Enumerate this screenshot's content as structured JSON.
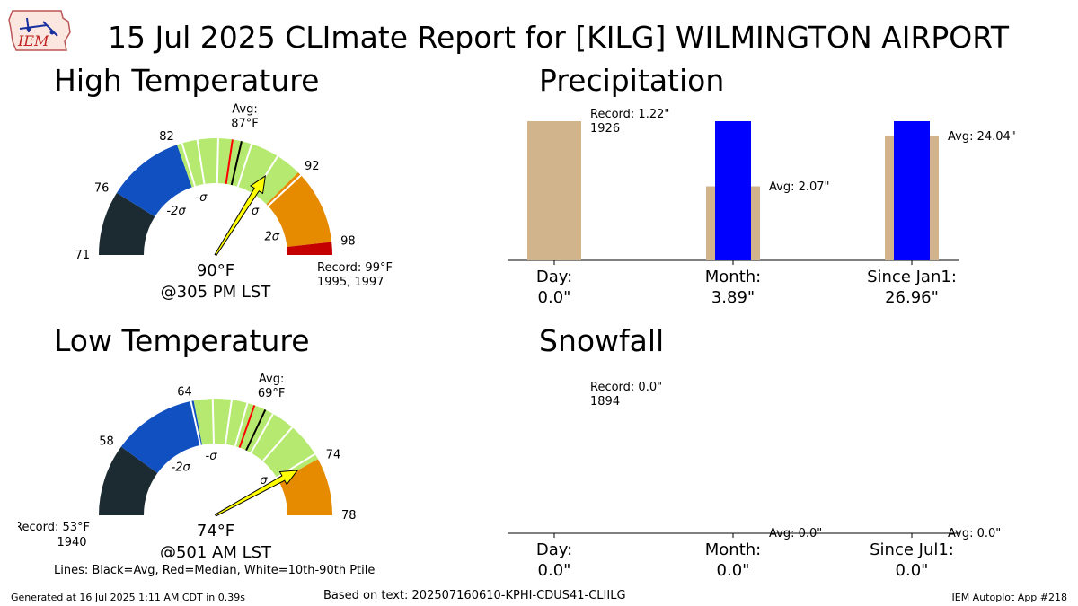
{
  "title": "15 Jul 2025 CLImate Report for [KILG] WILMINGTON AIRPORT",
  "logo_text": "IEM",
  "sections": {
    "high": "High Temperature",
    "low": "Low Temperature",
    "precip": "Precipitation",
    "snow": "Snowfall"
  },
  "chart_data": [
    {
      "type": "gauge",
      "id": "high",
      "min": 71,
      "max": 99,
      "value": 90,
      "value_label": "90$^\\circ$F",
      "time_label": "@305 PM LST",
      "avg": 87,
      "avg_label": [
        "Avg:",
        "87$^\\circ$F"
      ],
      "median": 86.3,
      "tick_labels": [
        {
          "v": 71,
          "t": "71"
        },
        {
          "v": 76,
          "t": "76"
        },
        {
          "v": 82,
          "t": "82"
        },
        {
          "v": 92,
          "t": "92"
        },
        {
          "v": 98,
          "t": "98"
        }
      ],
      "sigma_labels": [
        {
          "v": 78.5,
          "t": "-2σ"
        },
        {
          "v": 82.8,
          "t": "-σ"
        },
        {
          "v": 91.5,
          "t": "σ"
        },
        {
          "v": 96.2,
          "t": "2σ"
        }
      ],
      "bands": [
        {
          "from": 71,
          "to": 76,
          "color": "#1c2a32"
        },
        {
          "from": 76,
          "to": 82,
          "color": "#1050c0"
        },
        {
          "from": 82,
          "to": 92,
          "color": "#b6e96f"
        },
        {
          "from": 92,
          "to": 98,
          "color": "#e68a00"
        },
        {
          "from": 98,
          "to": 99,
          "color": "#c40000"
        }
      ],
      "white_lines": [
        82.4,
        83.6,
        85.2,
        87.8,
        90.0,
        92.3
      ],
      "record_label": [
        "Record: 99$^\\circ$F",
        "1995, 1997"
      ],
      "record_side": "right"
    },
    {
      "type": "gauge",
      "id": "low",
      "min": 53,
      "max": 78,
      "value": 74,
      "value_label": "74$^\\circ$F",
      "time_label": "@501 AM LST",
      "avg": 69,
      "avg_label": [
        "Avg:",
        "69$^\\circ$F"
      ],
      "median": 68.2,
      "tick_labels": [
        {
          "v": 58,
          "t": "58"
        },
        {
          "v": 64,
          "t": "64"
        },
        {
          "v": 74,
          "t": "74"
        },
        {
          "v": 78,
          "t": "78"
        }
      ],
      "sigma_labels": [
        {
          "v": 60.5,
          "t": "-2σ"
        },
        {
          "v": 64.9,
          "t": "-σ"
        },
        {
          "v": 73.0,
          "t": "σ"
        }
      ],
      "bands": [
        {
          "from": 53,
          "to": 58,
          "color": "#1c2a32"
        },
        {
          "from": 58,
          "to": 64,
          "color": "#1050c0"
        },
        {
          "from": 64,
          "to": 74,
          "color": "#b6e96f"
        },
        {
          "from": 74,
          "to": 78,
          "color": "#e68a00"
        }
      ],
      "white_lines": [
        63.8,
        65.3,
        66.6,
        67.7,
        69.6,
        71.2,
        73.6
      ],
      "record_label": [
        "Record: 53$^\\circ$F",
        "1940"
      ],
      "record_side": "left"
    },
    {
      "type": "bar",
      "id": "precip",
      "categories": [
        "Day:",
        "Month:",
        "Since Jan1:"
      ],
      "value_labels": [
        "0.0\"",
        "3.89\"",
        "26.96\""
      ],
      "observed": [
        0.0,
        3.89,
        26.96
      ],
      "average": [
        0.0,
        2.07,
        24.04
      ],
      "record": 1.22,
      "ylim_per_group": [
        1.22,
        3.89,
        26.96
      ],
      "annotations": [
        "Record: 1.22\"\n1926",
        "Avg: 2.07\"",
        "Avg: 24.04\""
      ],
      "colors": {
        "observed": "#0000ff",
        "background": "#d2b48c"
      }
    },
    {
      "type": "bar",
      "id": "snow",
      "categories": [
        "Day:",
        "Month:",
        "Since Jul1:"
      ],
      "value_labels": [
        "0.0\"",
        "0.0\"",
        "0.0\""
      ],
      "observed": [
        0.0,
        0.0,
        0.0
      ],
      "average": [
        0.0,
        0.0,
        0.0
      ],
      "record": 0.0,
      "annotations": [
        "Record: 0.0\"\n1894",
        "Avg: 0.0\"",
        "Avg: 0.0\""
      ]
    }
  ],
  "legend_note": "Lines: Black=Avg, Red=Median, White=10th-90th Ptile",
  "footer": {
    "generated": "Generated at 16 Jul 2025 1:11 AM CDT in 0.39s",
    "based_on": "Based on text: 202507160610-KPHI-CDUS41-CLIILG",
    "app": "IEM Autoplot App #218"
  },
  "colors": {
    "arrow_fill": "#ffff00",
    "avg_line": "#000000",
    "median_line": "#ff0000",
    "ptile_line": "#ffffff"
  }
}
